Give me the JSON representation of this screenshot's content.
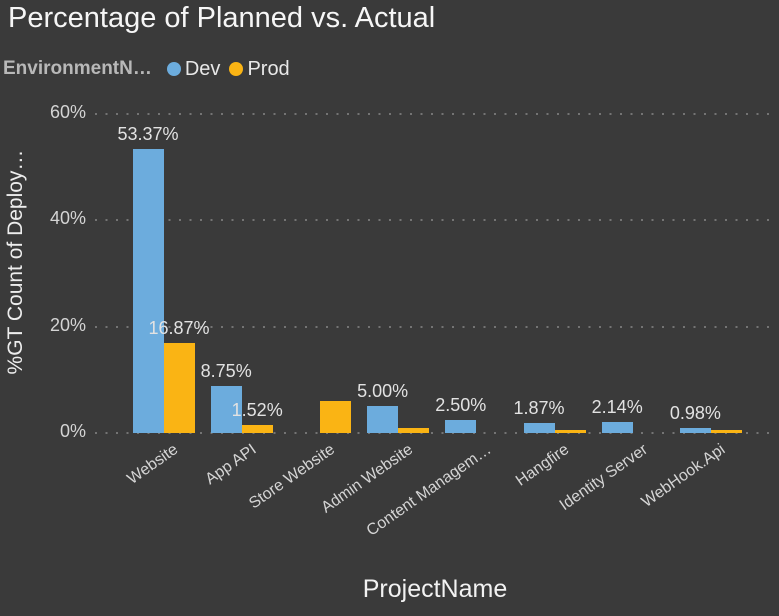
{
  "title": "Percentage of Planned vs. Actual",
  "legend": {
    "title": "EnvironmentN…"
  },
  "chart_data": {
    "type": "bar",
    "title": "Percentage of Planned vs. Actual",
    "xlabel": "ProjectName",
    "ylabel": "%GT Count of Deploy…",
    "legend_title": "EnvironmentN…",
    "legend_position": "top-left",
    "ylim": [
      0,
      60
    ],
    "yticks": [
      0,
      20,
      40,
      60
    ],
    "ytick_labels": [
      "0%",
      "20%",
      "40%",
      "60%"
    ],
    "grid": "dotted-horizontal",
    "categories": [
      "Website",
      "App API",
      "Store Website",
      "Admin Website",
      "Content Managem…",
      "Hangfire",
      "Identity Server",
      "WebHook.Api"
    ],
    "series": [
      {
        "name": "Dev",
        "color": "#6CACDD",
        "values": [
          53.37,
          8.75,
          null,
          5.0,
          2.5,
          1.87,
          2.14,
          0.98
        ],
        "data_labels": [
          "53.37%",
          "8.75%",
          null,
          "5.00%",
          "2.50%",
          "1.87%",
          "2.14%",
          "0.98%"
        ]
      },
      {
        "name": "Prod",
        "color": "#FAB414",
        "values": [
          16.87,
          1.52,
          6.1,
          0.95,
          null,
          0.55,
          null,
          0.55
        ],
        "data_labels": [
          "16.87%",
          "1.52%",
          null,
          null,
          null,
          null,
          null,
          null
        ]
      }
    ],
    "colors": {
      "background": "#3A3A3A",
      "grid_dots": "#747474",
      "tick_text": "#D4D4D4",
      "title_text": "#F6F6F6",
      "dev_blue": "#6CACDD",
      "prod_yellow": "#FAB414"
    }
  }
}
